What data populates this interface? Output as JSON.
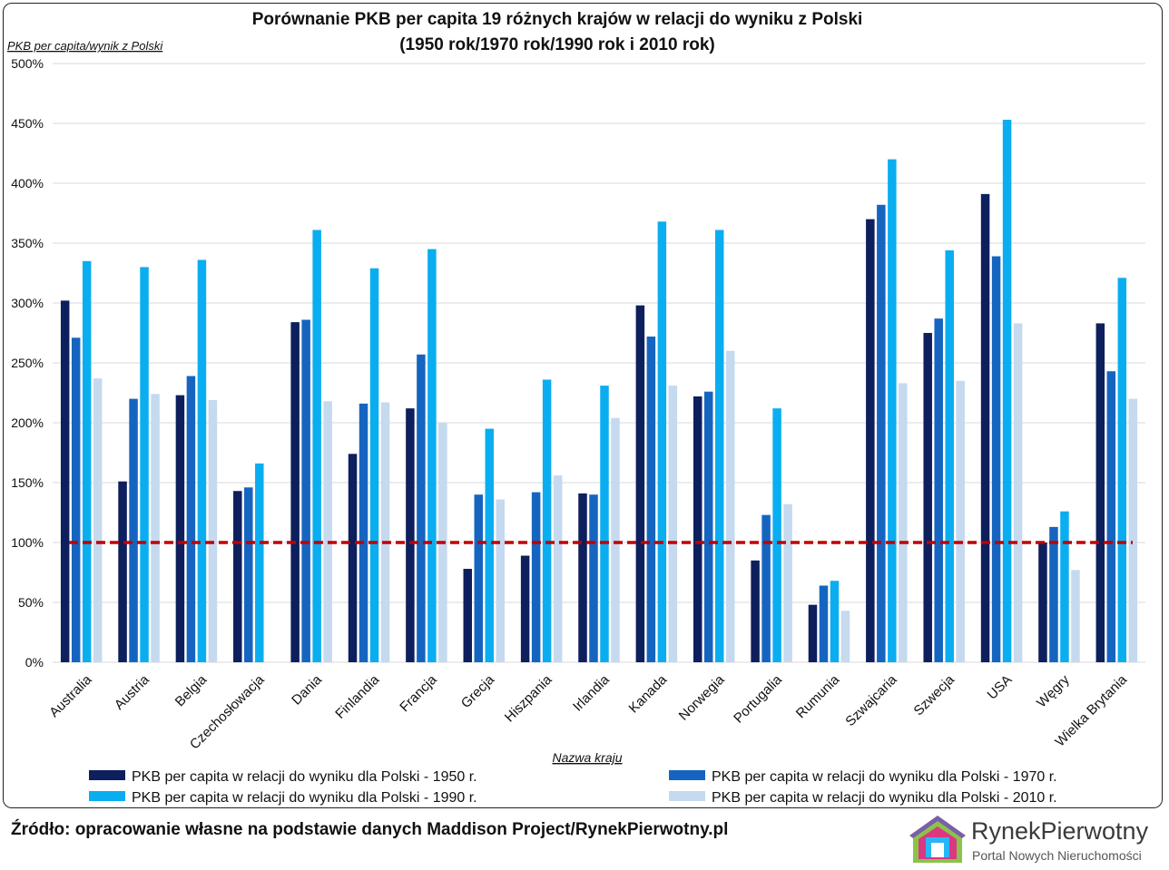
{
  "chart_data": {
    "type": "bar",
    "title_line1": "Porównanie PKB per capita 19 różnych krajów w relacji do wyniku z Polski",
    "title_line2": "(1950 rok/1970 rok/1990 rok i 2010 rok)",
    "ylabel": "PKB per capita/wynik z Polski",
    "xlabel": "Nazwa kraju",
    "ylim": [
      0,
      500
    ],
    "yticks": [
      "0%",
      "50%",
      "100%",
      "150%",
      "200%",
      "250%",
      "300%",
      "350%",
      "400%",
      "450%",
      "500%"
    ],
    "reference_line": 100,
    "grid": true,
    "legend_position": "bottom",
    "categories": [
      "Australia",
      "Austria",
      "Belgia",
      "Czechosłowacja",
      "Dania",
      "Finlandia",
      "Francja",
      "Grecja",
      "Hiszpania",
      "Irlandia",
      "Kanada",
      "Norwegia",
      "Portugalia",
      "Rumunia",
      "Szwajcaria",
      "Szwecja",
      "USA",
      "Węgry",
      "Wielka Brytania"
    ],
    "series": [
      {
        "name": "PKB per capita w relacji do wyniku dla Polski - 1950 r.",
        "color": "#0d1f5c",
        "values": [
          302,
          151,
          223,
          143,
          284,
          174,
          212,
          78,
          89,
          141,
          298,
          222,
          85,
          48,
          370,
          275,
          391,
          100,
          283
        ]
      },
      {
        "name": "PKB per capita w relacji do wyniku dla Polski - 1970 r.",
        "color": "#1565c0",
        "values": [
          271,
          220,
          239,
          146,
          286,
          216,
          257,
          140,
          142,
          140,
          272,
          226,
          123,
          64,
          382,
          287,
          339,
          113,
          243
        ]
      },
      {
        "name": "PKB per capita w relacji do wyniku dla Polski - 1990 r.",
        "color": "#0aaef0",
        "values": [
          335,
          330,
          336,
          166,
          361,
          329,
          345,
          195,
          236,
          231,
          368,
          361,
          212,
          68,
          420,
          344,
          453,
          126,
          321
        ]
      },
      {
        "name": "PKB per capita w relacji do wyniku dla Polski - 2010 r.",
        "color": "#c5d9ef",
        "values": [
          237,
          224,
          219,
          null,
          218,
          217,
          200,
          136,
          156,
          204,
          231,
          260,
          132,
          43,
          233,
          235,
          283,
          77,
          220
        ]
      }
    ]
  },
  "footer": {
    "source": "Źródło: opracowanie własne na podstawie danych Maddison Project/RynekPierwotny.pl",
    "logo_name": "RynekPierwotny",
    "logo_tagline": "Portal Nowych Nieruchomości"
  }
}
